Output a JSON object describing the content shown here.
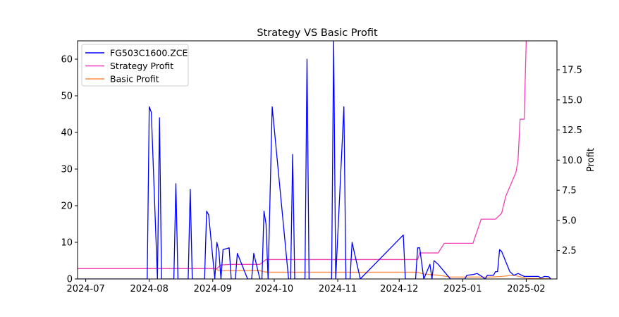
{
  "chart_data": {
    "type": "line",
    "title": "Strategy VS Basic Profit",
    "xlabel": "",
    "ylabel_left": "",
    "ylabel_right": "Profit",
    "x_ticks": [
      "2024-07",
      "2024-08",
      "2024-09",
      "2024-10",
      "2024-11",
      "2024-12",
      "2025-01",
      "2025-02"
    ],
    "x_range": [
      "2024-06-27",
      "2025-02-16"
    ],
    "y_left_range": [
      0,
      65
    ],
    "y_left_ticks": [
      0,
      10,
      20,
      30,
      40,
      50,
      60
    ],
    "y_right_range": [
      0.14,
      19.9
    ],
    "y_right_ticks": [
      2.5,
      5.0,
      7.5,
      10.0,
      12.5,
      15.0,
      17.5
    ],
    "y_right_tick_labels": [
      "2.5",
      "5.0",
      "7.5",
      "10.0",
      "12.5",
      "15.0",
      "17.5"
    ],
    "grid": false,
    "legend_position": "top-left",
    "series": [
      {
        "name": "FG503C1600.ZCE",
        "axis": "left",
        "color": "#0000ff",
        "points": [
          [
            "2024-06-27",
            0
          ],
          [
            "2024-07-31",
            0
          ],
          [
            "2024-08-01",
            47
          ],
          [
            "2024-08-02",
            45.5
          ],
          [
            "2024-08-05",
            0
          ],
          [
            "2024-08-06",
            44
          ],
          [
            "2024-08-07",
            0
          ],
          [
            "2024-08-13",
            0
          ],
          [
            "2024-08-14",
            26
          ],
          [
            "2024-08-15",
            0
          ],
          [
            "2024-08-20",
            0
          ],
          [
            "2024-08-21",
            24.5
          ],
          [
            "2024-08-22",
            0
          ],
          [
            "2024-08-28",
            0
          ],
          [
            "2024-08-29",
            18.5
          ],
          [
            "2024-08-30",
            17.5
          ],
          [
            "2024-09-02",
            0
          ],
          [
            "2024-09-03",
            10
          ],
          [
            "2024-09-04",
            7.5
          ],
          [
            "2024-09-05",
            0
          ],
          [
            "2024-09-06",
            8
          ],
          [
            "2024-09-09",
            8.5
          ],
          [
            "2024-09-10",
            0
          ],
          [
            "2024-09-12",
            0
          ],
          [
            "2024-09-13",
            7
          ],
          [
            "2024-09-18",
            0
          ],
          [
            "2024-09-20",
            0
          ],
          [
            "2024-09-21",
            7
          ],
          [
            "2024-09-24",
            0
          ],
          [
            "2024-09-25",
            0
          ],
          [
            "2024-09-26",
            18.5
          ],
          [
            "2024-09-27",
            15
          ],
          [
            "2024-09-28",
            0
          ],
          [
            "2024-09-30",
            47
          ],
          [
            "2024-10-08",
            0
          ],
          [
            "2024-10-09",
            0
          ],
          [
            "2024-10-10",
            34
          ],
          [
            "2024-10-11",
            0
          ],
          [
            "2024-10-16",
            0
          ],
          [
            "2024-10-17",
            60
          ],
          [
            "2024-10-18",
            0
          ],
          [
            "2024-10-29",
            0
          ],
          [
            "2024-10-30",
            65
          ],
          [
            "2024-10-31",
            0
          ],
          [
            "2024-11-04",
            47
          ],
          [
            "2024-11-05",
            0
          ],
          [
            "2024-11-07",
            0
          ],
          [
            "2024-11-08",
            10
          ],
          [
            "2024-11-12",
            0
          ],
          [
            "2024-12-03",
            12
          ],
          [
            "2024-12-04",
            0
          ],
          [
            "2024-12-09",
            0
          ],
          [
            "2024-12-10",
            8.5
          ],
          [
            "2024-12-11",
            8.5
          ],
          [
            "2024-12-13",
            0
          ],
          [
            "2024-12-16",
            4
          ],
          [
            "2024-12-17",
            0
          ],
          [
            "2024-12-18",
            5
          ],
          [
            "2024-12-20",
            4
          ],
          [
            "2024-12-26",
            0
          ],
          [
            "2025-01-02",
            0
          ],
          [
            "2025-01-03",
            1
          ],
          [
            "2025-01-06",
            1.2
          ],
          [
            "2025-01-08",
            1.5
          ],
          [
            "2025-01-10",
            0.8
          ],
          [
            "2025-01-12",
            0
          ],
          [
            "2025-01-13",
            1
          ],
          [
            "2025-01-16",
            1
          ],
          [
            "2025-01-17",
            2
          ],
          [
            "2025-01-18",
            2
          ],
          [
            "2025-01-19",
            8
          ],
          [
            "2025-01-20",
            7.5
          ],
          [
            "2025-01-24",
            2
          ],
          [
            "2025-01-26",
            1
          ],
          [
            "2025-01-28",
            1.5
          ],
          [
            "2025-01-31",
            0.7
          ],
          [
            "2025-02-07",
            0.7
          ],
          [
            "2025-02-08",
            0.3
          ],
          [
            "2025-02-10",
            0.7
          ],
          [
            "2025-02-12",
            0.6
          ],
          [
            "2025-02-13",
            0
          ]
        ]
      },
      {
        "name": "Strategy Profit",
        "axis": "right",
        "color": "#f241b5",
        "points": [
          [
            "2024-06-27",
            1.0
          ],
          [
            "2024-08-28",
            1.0
          ],
          [
            "2024-09-03",
            1.0
          ],
          [
            "2024-09-05",
            1.3
          ],
          [
            "2024-09-10",
            1.35
          ],
          [
            "2024-09-24",
            1.35
          ],
          [
            "2024-09-27",
            1.75
          ],
          [
            "2024-10-08",
            1.75
          ],
          [
            "2024-12-10",
            1.75
          ],
          [
            "2024-12-11",
            2.3
          ],
          [
            "2024-12-20",
            2.3
          ],
          [
            "2024-12-23",
            3.1
          ],
          [
            "2025-01-06",
            3.1
          ],
          [
            "2025-01-10",
            5.1
          ],
          [
            "2025-01-17",
            5.1
          ],
          [
            "2025-01-20",
            5.6
          ],
          [
            "2025-01-22",
            7.0
          ],
          [
            "2025-01-27",
            9.0
          ],
          [
            "2025-01-28",
            10.0
          ],
          [
            "2025-01-29",
            13.4
          ],
          [
            "2025-01-31",
            13.4
          ],
          [
            "2025-02-01",
            19.9
          ]
        ]
      },
      {
        "name": "Basic Profit",
        "axis": "right",
        "color": "#ff8c42",
        "points": [
          [
            "2024-06-27",
            1.0
          ],
          [
            "2024-09-02",
            1.0
          ],
          [
            "2024-09-04",
            0.83
          ],
          [
            "2024-09-10",
            0.83
          ],
          [
            "2024-09-24",
            0.83
          ],
          [
            "2024-09-27",
            0.7
          ],
          [
            "2024-12-10",
            0.7
          ],
          [
            "2024-12-13",
            0.55
          ],
          [
            "2024-12-20",
            0.45
          ],
          [
            "2024-12-26",
            0.3
          ],
          [
            "2025-01-15",
            0.3
          ],
          [
            "2025-01-20",
            0.35
          ],
          [
            "2025-01-26",
            0.45
          ],
          [
            "2025-02-01",
            0.2
          ],
          [
            "2025-02-13",
            0.15
          ]
        ]
      }
    ]
  }
}
